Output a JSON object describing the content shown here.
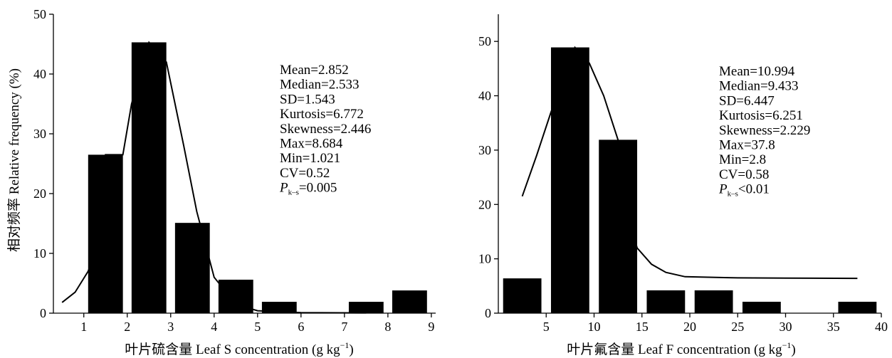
{
  "chart_data": [
    {
      "type": "bar",
      "x_bins": [
        {
          "start": 1.1,
          "end": 1.9,
          "value": 26.5
        },
        {
          "start": 2.1,
          "end": 2.9,
          "value": 45.3
        },
        {
          "start": 3.1,
          "end": 3.9,
          "value": 15.1
        },
        {
          "start": 4.1,
          "end": 4.9,
          "value": 5.6
        },
        {
          "start": 5.1,
          "end": 5.9,
          "value": 1.9
        },
        {
          "start": 7.1,
          "end": 7.9,
          "value": 1.9
        },
        {
          "start": 8.1,
          "end": 8.9,
          "value": 3.8
        }
      ],
      "curve": [
        [
          0.5,
          1.8
        ],
        [
          0.8,
          3.5
        ],
        [
          1.1,
          7
        ],
        [
          1.3,
          11
        ],
        [
          1.5,
          26.5
        ],
        [
          1.9,
          26.5
        ],
        [
          2.1,
          35
        ],
        [
          2.3,
          40
        ],
        [
          2.5,
          45.3
        ],
        [
          2.9,
          42
        ],
        [
          3.3,
          28
        ],
        [
          3.6,
          17
        ],
        [
          4.0,
          6
        ],
        [
          4.5,
          1.5
        ],
        [
          5.0,
          0.4
        ],
        [
          6.0,
          0.1
        ],
        [
          7.5,
          0.05
        ]
      ],
      "xlabel": "叶片硫含量 Leaf S concentration (g kg",
      "xlabel_unit_sup": "−1",
      "xlabel_close": ")",
      "ylabel": "相对频率 Relative frequency (%)",
      "xlim": [
        0.3,
        9.1
      ],
      "ylim": [
        0,
        50
      ],
      "xticks": [
        1,
        2,
        3,
        4,
        5,
        6,
        7,
        8,
        9
      ],
      "yticks": [
        0,
        10,
        20,
        30,
        40,
        50
      ],
      "stats": [
        "Mean=2.852",
        "Median=2.533",
        "SD=1.543",
        "Kurtosis=6.772",
        "Skewness=2.446",
        "Max=8.684",
        "Min=1.021",
        "CV=0.52"
      ],
      "pks": {
        "p": "P",
        "sub": "k–s",
        "rest": "=0.005"
      }
    },
    {
      "type": "bar",
      "x_bins": [
        {
          "start": 0.5,
          "end": 4.5,
          "value": 6.4
        },
        {
          "start": 5.5,
          "end": 9.5,
          "value": 48.9
        },
        {
          "start": 10.5,
          "end": 14.5,
          "value": 31.9
        },
        {
          "start": 15.5,
          "end": 19.5,
          "value": 4.2
        },
        {
          "start": 20.5,
          "end": 24.5,
          "value": 4.2
        },
        {
          "start": 25.5,
          "end": 29.5,
          "value": 2.1
        },
        {
          "start": 35.5,
          "end": 39.5,
          "value": 2.1
        }
      ],
      "curve": [
        [
          2.5,
          21.5
        ],
        [
          4,
          29
        ],
        [
          5.5,
          37
        ],
        [
          7,
          44
        ],
        [
          8,
          48.9
        ],
        [
          9.5,
          46
        ],
        [
          11,
          40
        ],
        [
          12.5,
          31.9
        ],
        [
          13.5,
          18
        ],
        [
          14.5,
          12
        ],
        [
          16,
          9
        ],
        [
          17.5,
          7.5
        ],
        [
          19.5,
          6.7
        ],
        [
          25,
          6.5
        ],
        [
          30,
          6.45
        ],
        [
          37.5,
          6.4
        ]
      ],
      "xlabel": "叶片氟含量 Leaf F concentration (g kg",
      "xlabel_unit_sup": "−1",
      "xlabel_close": ")",
      "xlim": [
        0,
        40
      ],
      "ylim": [
        0,
        55
      ],
      "xticks": [
        5,
        10,
        15,
        20,
        25,
        30,
        35,
        40
      ],
      "yticks": [
        0,
        10,
        20,
        30,
        40,
        50
      ],
      "stats": [
        "Mean=10.994",
        "Median=9.433",
        "SD=6.447",
        "Kurtosis=6.251",
        "Skewness=2.229",
        "Max=37.8",
        "Min=2.8",
        "CV=0.58"
      ],
      "pks": {
        "p": "P",
        "sub": "k–s",
        "rest": "<0.01"
      }
    }
  ]
}
